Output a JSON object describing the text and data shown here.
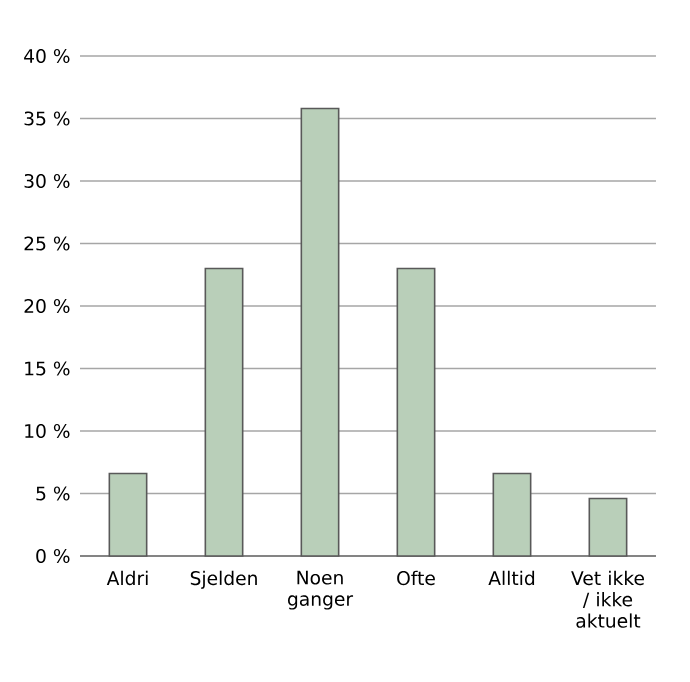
{
  "chart_data": {
    "type": "bar",
    "categories": [
      "Aldri",
      "Sjelden",
      "Noen ganger",
      "Ofte",
      "Alltid",
      "Vet ikke / ikke aktuelt"
    ],
    "values": [
      6.6,
      23.0,
      35.8,
      23.0,
      6.6,
      4.6
    ],
    "color": "#b9cfb9",
    "ylim": [
      0,
      40
    ],
    "yticks": [
      {
        "value": 0,
        "label": "0 %"
      },
      {
        "value": 5,
        "label": "5 %"
      },
      {
        "value": 10,
        "label": "10 %"
      },
      {
        "value": 15,
        "label": "15 %"
      },
      {
        "value": 20,
        "label": "20 %"
      },
      {
        "value": 25,
        "label": "25 %"
      },
      {
        "value": 30,
        "label": "30 %"
      },
      {
        "value": 35,
        "label": "35 %"
      },
      {
        "value": 40,
        "label": "40 %"
      }
    ],
    "grid": "y"
  }
}
